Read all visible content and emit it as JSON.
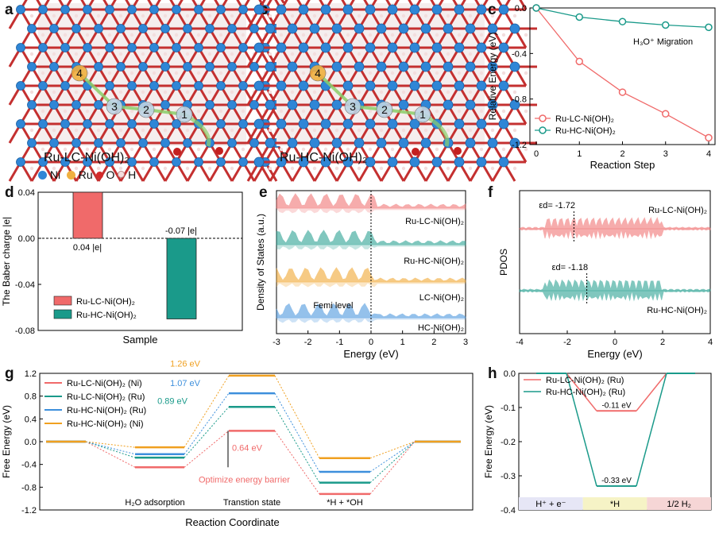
{
  "panels": {
    "a": {
      "letter": "a",
      "caption": "Ru-LC-Ni(OH)₂",
      "sites": [
        "4",
        "3",
        "2",
        "1"
      ]
    },
    "b": {
      "letter": "b",
      "caption": "Ru-HC-Ni(OH)₂",
      "sites": [
        "4",
        "3",
        "2",
        "1"
      ]
    },
    "legend_atoms": {
      "ni": "Ni",
      "ru": "Ru",
      "o": "O",
      "h": "H"
    },
    "c": {
      "letter": "c"
    },
    "d": {
      "letter": "d"
    },
    "e": {
      "letter": "e"
    },
    "f": {
      "letter": "f"
    },
    "g": {
      "letter": "g"
    },
    "h": {
      "letter": "h"
    }
  },
  "colors": {
    "red": "#f06a6a",
    "teal": "#1a9a8a",
    "blue": "#3d8fdc",
    "orange": "#f0a020"
  },
  "chart_data": [
    {
      "id": "c",
      "type": "line",
      "xlabel": "Reaction Step",
      "ylabel": "Relative Energy (eV)",
      "annotation": "H₃O⁺ Migration",
      "xlim": [
        0,
        4
      ],
      "ylim": [
        -1.2,
        0
      ],
      "xticks": [
        "0",
        "1",
        "2",
        "3",
        "4"
      ],
      "yticks": [
        "0.0",
        "-0.4",
        "-0.8",
        "-1.2"
      ],
      "x": [
        0,
        1,
        2,
        3,
        4
      ],
      "series": [
        {
          "name": "Ru-LC-Ni(OH)₂",
          "values": [
            0,
            -0.47,
            -0.74,
            -0.93,
            -1.14
          ]
        },
        {
          "name": "Ru-HC-Ni(OH)₂",
          "values": [
            0,
            -0.08,
            -0.12,
            -0.15,
            -0.17
          ]
        }
      ]
    },
    {
      "id": "d",
      "type": "bar",
      "xlabel": "Sample",
      "ylabel": "The Baber charge |e|",
      "ylim": [
        -0.08,
        0.04
      ],
      "yticks": [
        "0.04",
        "0.00",
        "-0.04",
        "-0.08"
      ],
      "categories": [
        "Ru-LC-Ni(OH)₂",
        "Ru-HC-Ni(OH)₂"
      ],
      "values": [
        0.04,
        -0.07
      ],
      "data_labels": [
        "0.04 |e|",
        "-0.07 |e|"
      ]
    },
    {
      "id": "e",
      "type": "area",
      "xlabel": "Energy (eV)",
      "ylabel": "Density of States (a.u.)",
      "xlim": [
        -3,
        3
      ],
      "xticks": [
        "-3",
        "-2",
        "-1",
        "0",
        "1",
        "2",
        "3"
      ],
      "annotation": "Femi level",
      "series": [
        {
          "name": "Ru-LC-Ni(OH)₂"
        },
        {
          "name": "Ru-HC-Ni(OH)₂"
        },
        {
          "name": "LC-Ni(OH)₂"
        },
        {
          "name": "HC-Ni(OH)₂"
        }
      ]
    },
    {
      "id": "f",
      "type": "area",
      "xlabel": "Energy (eV)",
      "ylabel": "PDOS",
      "xlim": [
        -4,
        4
      ],
      "xticks": [
        "-4",
        "-2",
        "0",
        "2",
        "4"
      ],
      "series": [
        {
          "name": "Ru-LC-Ni(OH)₂",
          "d_band_center": "εd= -1.72",
          "eps": -1.72
        },
        {
          "name": "Ru-HC-Ni(OH)₂",
          "d_band_center": "εd= -1.18",
          "eps": -1.18
        }
      ]
    },
    {
      "id": "g",
      "type": "line",
      "xlabel": "Reaction Coordinate",
      "ylabel": "Free Energy (eV)",
      "ylim": [
        -1.2,
        1.2
      ],
      "yticks": [
        "1.2",
        "0.8",
        "0.4",
        "0.0",
        "-0.4",
        "-0.8",
        "-1.2"
      ],
      "states": [
        "H₂O adsorption",
        "Transtion state",
        "*H + *OH"
      ],
      "series": [
        {
          "name": "Ru-LC-Ni(OH)₂ (Ni)",
          "values": [
            0,
            -0.45,
            0.19,
            -0.92
          ]
        },
        {
          "name": "Ru-LC-Ni(OH)₂ (Ru)",
          "values": [
            0,
            -0.28,
            0.61,
            -0.72
          ]
        },
        {
          "name": "Ru-HC-Ni(OH)₂ (Ru)",
          "values": [
            0,
            -0.22,
            0.85,
            -0.53
          ]
        },
        {
          "name": "Ru-HC-Ni(OH)₂ (Ni)",
          "values": [
            0,
            -0.1,
            1.16,
            -0.29
          ]
        }
      ],
      "barrier_labels": [
        "1.26 eV",
        "1.07 eV",
        "0.89 eV",
        "0.64 eV"
      ],
      "annotation": "Optimize energy barrier"
    },
    {
      "id": "h",
      "type": "line",
      "ylabel": "Free Energy (eV)",
      "ylim": [
        -0.4,
        0.0
      ],
      "yticks": [
        "0.0",
        "-0.1",
        "-0.2",
        "-0.3",
        "-0.4"
      ],
      "states": [
        "H⁺ + e⁻",
        "*H",
        "1/2 H₂"
      ],
      "series": [
        {
          "name": "Ru-LC-Ni(OH)₂ (Ru)",
          "values": [
            0,
            -0.11,
            0
          ]
        },
        {
          "name": "Ru-HC-Ni(OH)₂ (Ru)",
          "values": [
            0,
            -0.33,
            0
          ]
        }
      ],
      "data_labels": [
        "-0.11 eV",
        "-0.33 eV"
      ]
    }
  ]
}
